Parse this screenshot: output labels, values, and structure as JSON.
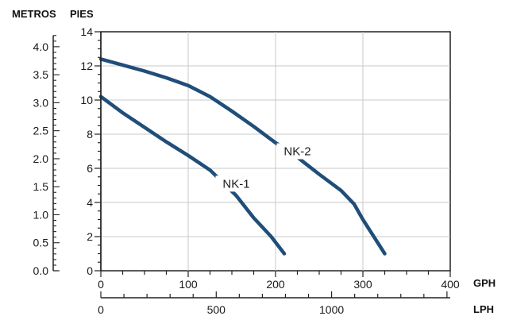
{
  "chart_data": {
    "type": "line",
    "title": "",
    "units": {
      "metros": "METROS",
      "pies": "PIES",
      "gph": "GPH",
      "lph": "LPH"
    },
    "x_gph": {
      "label": "GPH",
      "lim": [
        0,
        400
      ],
      "ticks": [
        "0",
        "100",
        "200",
        "300",
        "400"
      ]
    },
    "x_lph": {
      "label": "LPH",
      "ticks": [
        "0",
        "500",
        "1000"
      ],
      "tick_values": [
        0,
        500,
        1000
      ]
    },
    "y_pies": {
      "label": "PIES",
      "lim": [
        0,
        14
      ],
      "ticks": [
        "0",
        "2",
        "4",
        "6",
        "8",
        "10",
        "12",
        "14"
      ]
    },
    "y_metros": {
      "label": "METROS",
      "ticks": [
        "0.0",
        "0.5",
        "1.0",
        "1.5",
        "2.0",
        "2.5",
        "3.0",
        "3.5",
        "4.0"
      ]
    },
    "grid": true,
    "series": [
      {
        "name": "NK-1",
        "color": "#1f4e79",
        "x": [
          0,
          25,
          50,
          75,
          100,
          125,
          155,
          175,
          195,
          210
        ],
        "y": [
          10.2,
          9.25,
          8.4,
          7.55,
          6.75,
          5.9,
          4.4,
          3.1,
          2.0,
          1.0
        ]
      },
      {
        "name": "NK-2",
        "color": "#1f4e79",
        "x": [
          0,
          25,
          50,
          75,
          100,
          125,
          150,
          175,
          200,
          225,
          250,
          275,
          290,
          300,
          310,
          325
        ],
        "y": [
          12.4,
          12.05,
          11.7,
          11.3,
          10.85,
          10.2,
          9.35,
          8.45,
          7.5,
          6.65,
          5.65,
          4.7,
          3.9,
          3.0,
          2.2,
          1.0
        ]
      }
    ],
    "annotations": [
      {
        "text": "NK-1",
        "series": "NK-1"
      },
      {
        "text": "NK-2",
        "series": "NK-2"
      }
    ]
  }
}
